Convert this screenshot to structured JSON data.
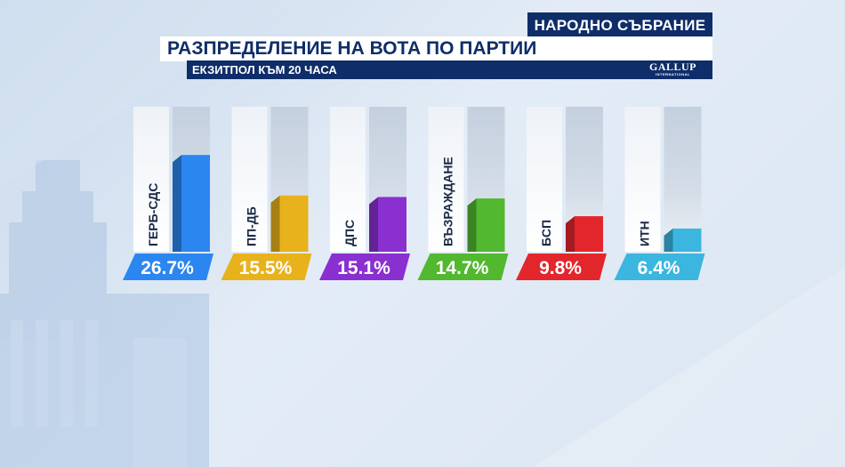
{
  "header": {
    "tag": "НАРОДНО СЪБРАНИЕ",
    "title": "РАЗПРЕДЕЛЕНИЕ НА ВОТА ПО ПАРТИИ",
    "subtitle": "ЕКЗИТПОЛ КЪМ 20 ЧАСА",
    "logo_text": "GALLUP",
    "logo_subtext": "INTERNATIONAL",
    "flag_colors": [
      "#ffffff",
      "#00966e",
      "#d62612"
    ]
  },
  "chart_data": {
    "type": "bar",
    "categories": [
      "ГЕРБ-СДС",
      "ПП-ДБ",
      "ДПС",
      "ВЪЗРАЖДАНЕ",
      "БСП",
      "ИТН"
    ],
    "values": [
      26.7,
      15.5,
      15.1,
      14.7,
      9.8,
      6.4
    ],
    "value_labels": [
      "26.7%",
      "15.5%",
      "15.1%",
      "14.7%",
      "9.8%",
      "6.4%"
    ],
    "colors": [
      "#2b86f0",
      "#e8b21c",
      "#8a2fd0",
      "#52b830",
      "#e3262c",
      "#3bb6de"
    ],
    "ylim": [
      0,
      100
    ],
    "grid": false,
    "legend": "none"
  }
}
